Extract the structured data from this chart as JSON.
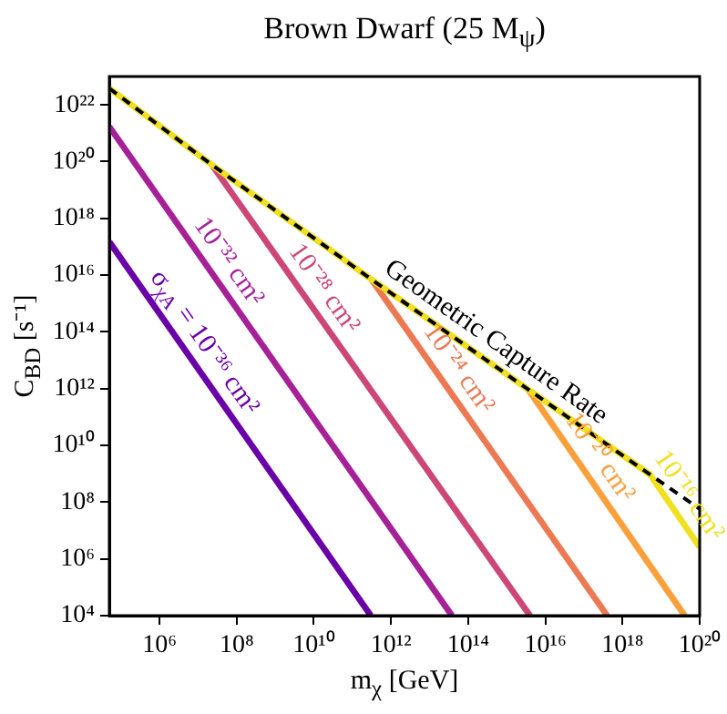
{
  "chart_data": {
    "type": "line",
    "title": "Brown Dwarf (25 M$_{ψ}$)",
    "xlabel": "m$_{χ}$ [GeV]",
    "ylabel": "C$_{BD}$ [s⁻¹]",
    "log": "xy",
    "xlim": [
      50000.0,
      1e+20
    ],
    "ylim": [
      10000.0,
      1e+23
    ],
    "xticks": [
      {
        "value": 1000000.0,
        "label": "10⁶"
      },
      {
        "value": 100000000.0,
        "label": "10⁸"
      },
      {
        "value": 10000000000.0,
        "label": "10¹⁰"
      },
      {
        "value": 1000000000000.0,
        "label": "10¹²"
      },
      {
        "value": 100000000000000.0,
        "label": "10¹⁴"
      },
      {
        "value": 1e+16,
        "label": "10¹⁶"
      },
      {
        "value": 1e+18,
        "label": "10¹⁸"
      },
      {
        "value": 1e+20,
        "label": "10²⁰"
      }
    ],
    "yticks": [
      {
        "value": 10000.0,
        "label": "10⁴"
      },
      {
        "value": 1000000.0,
        "label": "10⁶"
      },
      {
        "value": 100000000.0,
        "label": "10⁸"
      },
      {
        "value": 10000000000.0,
        "label": "10¹⁰"
      },
      {
        "value": 1000000000000.0,
        "label": "10¹²"
      },
      {
        "value": 100000000000000.0,
        "label": "10¹⁴"
      },
      {
        "value": 1e+16,
        "label": "10¹⁶"
      },
      {
        "value": 1e+18,
        "label": "10¹⁸"
      },
      {
        "value": 1e+20,
        "label": "10²⁰"
      },
      {
        "value": 1e+22,
        "label": "10²²"
      }
    ],
    "grid": false,
    "legend": false,
    "marker": "none",
    "series": [
      {
        "name": "σ$_{χA}$ = 10⁻³⁶ cm²",
        "color": "#6a00a8",
        "line_style": "solid",
        "x": [
          50000.0,
          300000000000.0
        ],
        "values": [
          1.5e+17,
          10000.0
        ]
      },
      {
        "name": "10⁻³² cm²",
        "color": "#a62098",
        "line_style": "solid",
        "x": [
          50000.0,
          38000000000000.0
        ],
        "values": [
          1.7e+21,
          10000.0
        ]
      },
      {
        "name": "10⁻²⁸ cm²",
        "color": "#cc4778",
        "line_style": "solid",
        "x": [
          23000000.0,
          4000000000000000.0
        ],
        "values": [
          7.6e+19,
          10000.0
        ]
      },
      {
        "name": "10⁻²⁴ cm²",
        "color": "#ed7953",
        "line_style": "solid",
        "x": [
          310000000000.0,
          4e+17
        ],
        "values": [
          7100000000000000.0,
          10000.0
        ]
      },
      {
        "name": "10⁻²⁰ cm²",
        "color": "#fb9f3a",
        "line_style": "solid",
        "x": [
          3600000000000000.0,
          4.1e+19
        ],
        "values": [
          930000000000.0,
          10000.0
        ]
      },
      {
        "name": "10⁻¹⁶ cm²",
        "color": "#f0e020",
        "line_style": "solid",
        "x": [
          50000.0,
          23000000.0,
          310000000000.0,
          3600000000000000.0,
          5.1e+18,
          1e+20
        ],
        "values": [
          3.8e+22,
          7.6e+19,
          7100000000000000.0,
          930000000000.0,
          950000000.0,
          2600000.0
        ]
      },
      {
        "name": "Geometric Capture Rate",
        "color": "#000000",
        "line_style": "dashed",
        "x": [
          50000.0,
          23000000.0,
          310000000000.0,
          3600000000000000.0,
          5.1e+18,
          1e+20
        ],
        "values": [
          3.8e+22,
          7.6e+19,
          7100000000000000.0,
          930000000000.0,
          950000000.0,
          58000000.0
        ]
      }
    ]
  }
}
